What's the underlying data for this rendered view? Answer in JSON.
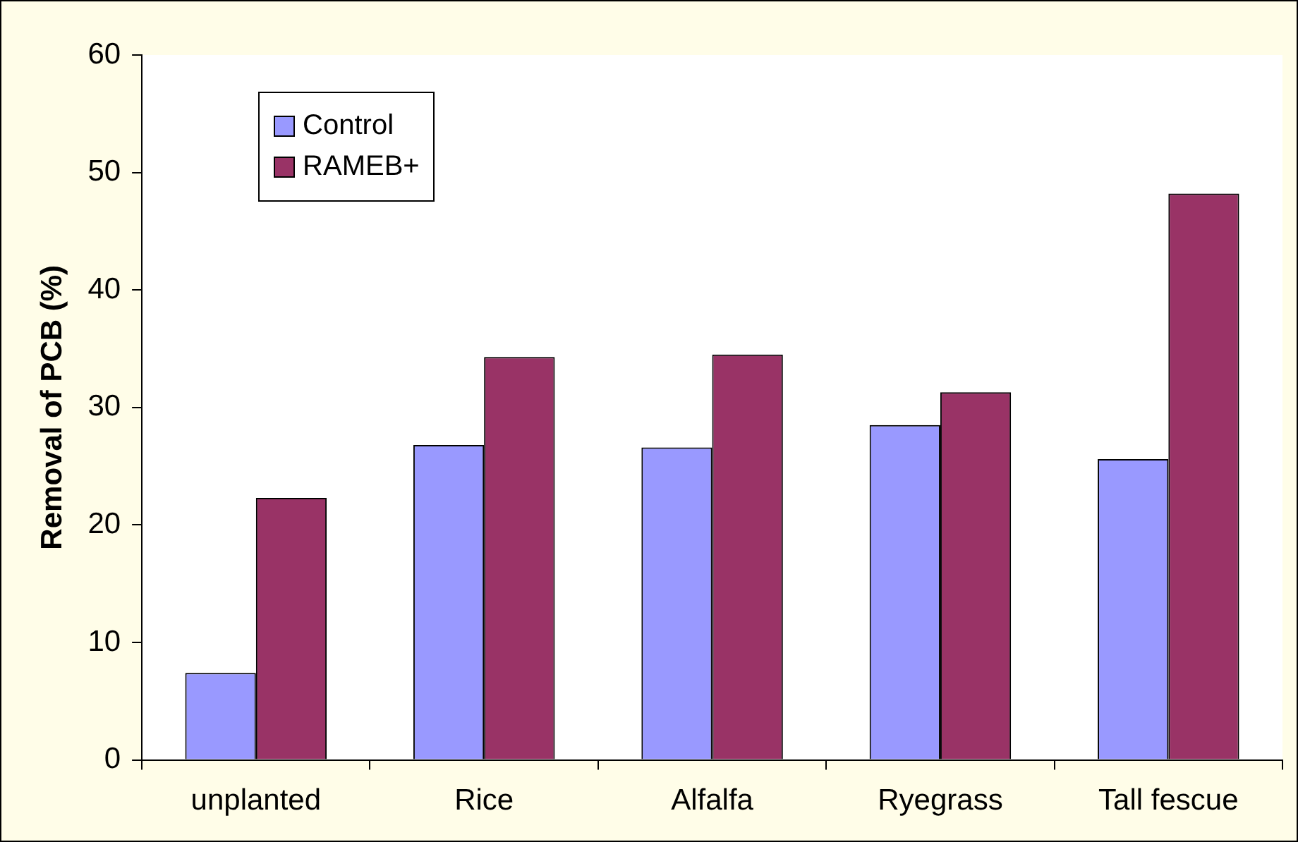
{
  "chart_data": {
    "type": "bar",
    "ylabel": "Removal of PCB (%)",
    "categories": [
      "unplanted",
      "Rice",
      "Alfalfa",
      "Ryegrass",
      "Tall fescue"
    ],
    "series": [
      {
        "name": "Control",
        "color": "#9999ff",
        "values": [
          7.4,
          26.8,
          26.6,
          28.5,
          25.6
        ]
      },
      {
        "name": "RAMEB+",
        "color": "#993366",
        "values": [
          22.3,
          34.3,
          34.5,
          31.3,
          48.2
        ]
      }
    ],
    "ylim": [
      0,
      60
    ],
    "yticks": [
      0,
      10,
      20,
      30,
      40,
      50,
      60
    ],
    "grid": false,
    "legend": "top left"
  }
}
